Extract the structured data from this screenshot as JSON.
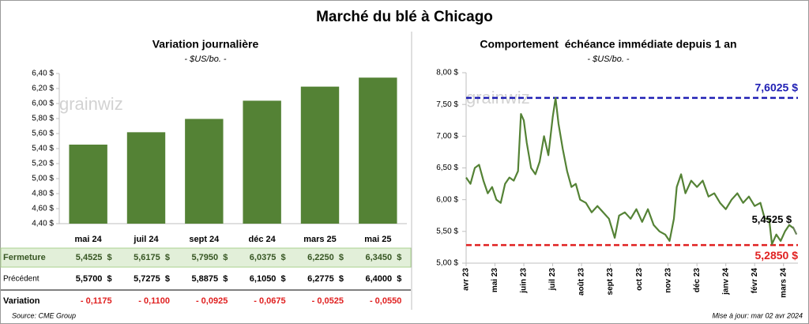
{
  "title": "Marché du blé à Chicago",
  "watermark": "grainwiz",
  "chart_data": [
    {
      "type": "bar",
      "title": "Variation journalière",
      "subtitle": "- $US/bo. -",
      "categories": [
        "mai 24",
        "juil 24",
        "sept 24",
        "déc 24",
        "mars 25",
        "mai 25"
      ],
      "values": [
        5.4525,
        5.6175,
        5.795,
        6.0375,
        6.225,
        6.345
      ],
      "color": "#548235",
      "ylim": [
        4.4,
        6.4
      ],
      "yticks": [
        {
          "value": 4.4,
          "label": "4,40 $"
        },
        {
          "value": 4.6,
          "label": "4,60 $"
        },
        {
          "value": 4.8,
          "label": "4,80 $"
        },
        {
          "value": 5.0,
          "label": "5,00 $"
        },
        {
          "value": 5.2,
          "label": "5,20 $"
        },
        {
          "value": 5.4,
          "label": "5,40 $"
        },
        {
          "value": 5.6,
          "label": "5,60 $"
        },
        {
          "value": 5.8,
          "label": "5,80 $"
        },
        {
          "value": 6.0,
          "label": "6,00 $"
        },
        {
          "value": 6.2,
          "label": "6,20 $"
        },
        {
          "value": 6.4,
          "label": "6,40 $"
        }
      ],
      "grid": false
    },
    {
      "type": "line",
      "title": "Comportement  échéance immédiate depuis 1 an",
      "subtitle": "- $US/bo. -",
      "x": [
        0,
        0.15,
        0.3,
        0.45,
        0.6,
        0.75,
        0.9,
        1.05,
        1.2,
        1.35,
        1.5,
        1.65,
        1.8,
        1.9,
        2.0,
        2.1,
        2.25,
        2.4,
        2.55,
        2.7,
        2.85,
        3.0,
        3.1,
        3.2,
        3.35,
        3.5,
        3.65,
        3.8,
        3.95,
        4.15,
        4.35,
        4.55,
        4.75,
        4.95,
        5.15,
        5.3,
        5.5,
        5.7,
        5.9,
        6.1,
        6.3,
        6.5,
        6.7,
        6.9,
        7.05,
        7.2,
        7.3,
        7.45,
        7.6,
        7.8,
        8.0,
        8.2,
        8.4,
        8.6,
        8.8,
        9.0,
        9.2,
        9.4,
        9.6,
        9.8,
        10.0,
        10.2,
        10.35,
        10.5,
        10.6,
        10.75,
        10.9,
        11.05,
        11.2,
        11.35,
        11.45
      ],
      "series": [
        {
          "color": "#548235",
          "values": [
            6.35,
            6.25,
            6.5,
            6.55,
            6.3,
            6.1,
            6.2,
            6.0,
            5.95,
            6.25,
            6.35,
            6.3,
            6.45,
            7.35,
            7.25,
            6.9,
            6.5,
            6.4,
            6.6,
            7.0,
            6.7,
            7.3,
            7.6,
            7.2,
            6.8,
            6.45,
            6.2,
            6.25,
            6.0,
            5.95,
            5.8,
            5.9,
            5.8,
            5.7,
            5.4,
            5.75,
            5.8,
            5.7,
            5.85,
            5.65,
            5.85,
            5.6,
            5.5,
            5.45,
            5.35,
            5.7,
            6.2,
            6.4,
            6.1,
            6.3,
            6.2,
            6.3,
            6.05,
            6.1,
            5.95,
            5.85,
            6.0,
            6.1,
            5.95,
            6.05,
            5.9,
            5.95,
            5.7,
            5.7,
            5.3,
            5.45,
            5.35,
            5.5,
            5.6,
            5.55,
            5.4525
          ]
        }
      ],
      "xlim": [
        0,
        11.5
      ],
      "xticks": [
        {
          "value": 0,
          "label": "avr 23"
        },
        {
          "value": 1,
          "label": "mai 23"
        },
        {
          "value": 2,
          "label": "juin 23"
        },
        {
          "value": 3,
          "label": "juil 23"
        },
        {
          "value": 4,
          "label": "août 23"
        },
        {
          "value": 5,
          "label": "sept 23"
        },
        {
          "value": 6,
          "label": "oct 23"
        },
        {
          "value": 7,
          "label": "nov 23"
        },
        {
          "value": 8,
          "label": "déc 23"
        },
        {
          "value": 9,
          "label": "janv 24"
        },
        {
          "value": 10,
          "label": "févr 24"
        },
        {
          "value": 11,
          "label": "mars 24"
        }
      ],
      "ylim": [
        5,
        8
      ],
      "yticks": [
        {
          "value": 5,
          "label": "5,00 $"
        },
        {
          "value": 5.5,
          "label": "5,50 $"
        },
        {
          "value": 6,
          "label": "6,00 $"
        },
        {
          "value": 6.5,
          "label": "6,50 $"
        },
        {
          "value": 7,
          "label": "7,00 $"
        },
        {
          "value": 7.5,
          "label": "7,50 $"
        },
        {
          "value": 8,
          "label": "8,00 $"
        }
      ],
      "reference_lines": [
        {
          "value": 7.6025,
          "label": "7,6025 $",
          "color": "#1f1fb4"
        },
        {
          "value": 5.285,
          "label": "5,2850 $",
          "color": "#e02020"
        }
      ],
      "annotation": {
        "x": 11.45,
        "y": 5.4525,
        "label": "5,4525 $"
      },
      "grid": false
    }
  ],
  "table": {
    "rows": [
      {
        "label": "Fermeture",
        "cells": [
          "5,4525  $",
          "5,6175  $",
          "5,7950  $",
          "6,0375  $",
          "6,2250  $",
          "6,3450  $"
        ]
      },
      {
        "label": "Précédent",
        "cells": [
          "5,5700  $",
          "5,7275  $",
          "5,8875  $",
          "6,1050  $",
          "6,2775  $",
          "6,4000  $"
        ]
      },
      {
        "label": "Variation",
        "cells": [
          "- 0,1175",
          "- 0,1100",
          "- 0,0925",
          "- 0,0675",
          "- 0,0525",
          "- 0,0550"
        ]
      }
    ]
  },
  "source": "Source: CME Group",
  "updated": "Mise à jour: mar 02 avr 2024"
}
